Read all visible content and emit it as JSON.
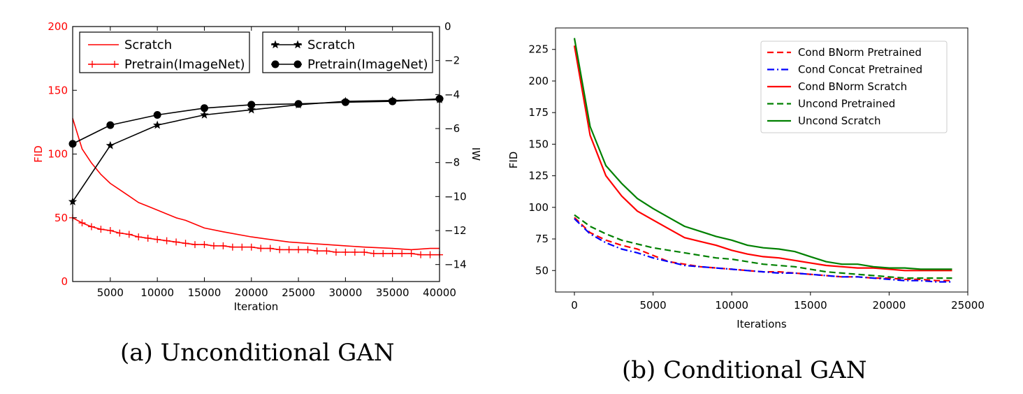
{
  "chart_data": [
    {
      "type": "line",
      "caption": "(a) Unconditional GAN",
      "xlabel": "Iteration",
      "ylabel": "FID",
      "ylabel_right": "IW",
      "xlim": [
        1000,
        40000
      ],
      "ylim": [
        0,
        200
      ],
      "ylim_right": [
        -15,
        0
      ],
      "xticks": [
        5000,
        10000,
        15000,
        20000,
        25000,
        30000,
        35000,
        40000
      ],
      "yticks": [
        0,
        50,
        100,
        150,
        200
      ],
      "yticks_right": [
        0,
        -2,
        -4,
        -6,
        -8,
        -10,
        -12,
        -14
      ],
      "left_axis_color": "#ff0000",
      "grid": false,
      "legend_placement": "top (two boxes)",
      "series": [
        {
          "name": "Scratch",
          "axis": "left",
          "color": "#ff0000",
          "marker": "none",
          "x": [
            1000,
            2000,
            3000,
            4000,
            5000,
            6000,
            7000,
            8000,
            9000,
            10000,
            11000,
            12000,
            13000,
            14000,
            15000,
            17000,
            20000,
            22000,
            24000,
            26000,
            28000,
            30000,
            32000,
            35000,
            37000,
            39000,
            40000
          ],
          "values": [
            128,
            104,
            93,
            84,
            77,
            72,
            67,
            62,
            59,
            56,
            53,
            50,
            48,
            45,
            42,
            39,
            35,
            33,
            31,
            30,
            29,
            28,
            27,
            26,
            25,
            26,
            26
          ]
        },
        {
          "name": "Pretrain(ImageNet)",
          "axis": "left",
          "color": "#ff0000",
          "marker": "plus",
          "x": [
            1000,
            2000,
            3000,
            4000,
            5000,
            6000,
            7000,
            8000,
            9000,
            10000,
            11000,
            12000,
            13000,
            14000,
            15000,
            16000,
            17000,
            18000,
            19000,
            20000,
            21000,
            22000,
            23000,
            24000,
            25000,
            26000,
            27000,
            28000,
            29000,
            30000,
            31000,
            32000,
            33000,
            34000,
            35000,
            36000,
            37000,
            38000,
            39000,
            40000
          ],
          "values": [
            50,
            46,
            43,
            41,
            40,
            38,
            37,
            35,
            34,
            33,
            32,
            31,
            30,
            29,
            29,
            28,
            28,
            27,
            27,
            27,
            26,
            26,
            25,
            25,
            25,
            25,
            24,
            24,
            23,
            23,
            23,
            23,
            22,
            22,
            22,
            22,
            22,
            21,
            21,
            21
          ]
        },
        {
          "name": "Scratch",
          "axis": "right",
          "color": "#000000",
          "marker": "star",
          "x": [
            1000,
            5000,
            10000,
            15000,
            20000,
            25000,
            30000,
            35000,
            40000
          ],
          "values": [
            -10.3,
            -7.0,
            -5.8,
            -5.2,
            -4.9,
            -4.6,
            -4.4,
            -4.35,
            -4.3
          ]
        },
        {
          "name": "Pretrain(ImageNet)",
          "axis": "right",
          "color": "#000000",
          "marker": "circle",
          "x": [
            1000,
            5000,
            10000,
            15000,
            20000,
            25000,
            30000,
            35000,
            40000
          ],
          "values": [
            -6.9,
            -5.8,
            -5.2,
            -4.8,
            -4.6,
            -4.55,
            -4.45,
            -4.4,
            -4.25
          ]
        }
      ]
    },
    {
      "type": "line",
      "caption": "(b) Conditional GAN",
      "xlabel": "Iterations",
      "ylabel": "FID",
      "xlim": [
        -1200,
        25000
      ],
      "ylim": [
        33,
        242
      ],
      "xticks": [
        0,
        5000,
        10000,
        15000,
        20000,
        25000
      ],
      "yticks": [
        50,
        75,
        100,
        125,
        150,
        175,
        200,
        225
      ],
      "grid": false,
      "legend_placement": "top-right",
      "series": [
        {
          "name": "Cond BNorm Pretrained",
          "color": "#ff0000",
          "dash": "dashed",
          "x": [
            0,
            1000,
            2000,
            3000,
            4000,
            5000,
            6000,
            7000,
            8000,
            9000,
            10000,
            11000,
            12000,
            13000,
            14000,
            15000,
            16000,
            17000,
            18000,
            19000,
            20000,
            21000,
            22000,
            23000,
            24000
          ],
          "values": [
            92,
            80,
            74,
            70,
            67,
            62,
            57,
            55,
            53,
            52,
            51,
            50,
            49,
            49,
            48,
            47,
            46,
            45,
            45,
            44,
            44,
            43,
            43,
            42,
            42
          ]
        },
        {
          "name": "Cond Concat Pretrained",
          "color": "#0000ff",
          "dash": "dashdot",
          "x": [
            0,
            1000,
            2000,
            3000,
            4000,
            5000,
            6000,
            7000,
            8000,
            9000,
            10000,
            11000,
            12000,
            13000,
            14000,
            15000,
            16000,
            17000,
            18000,
            19000,
            20000,
            21000,
            22000,
            23000,
            24000
          ],
          "values": [
            91,
            79,
            72,
            67,
            64,
            60,
            57,
            54,
            53,
            52,
            51,
            50,
            49,
            48,
            48,
            47,
            46,
            45,
            45,
            44,
            43,
            42,
            42,
            41,
            41
          ]
        },
        {
          "name": "Cond BNorm Scratch",
          "color": "#ff0000",
          "dash": "solid",
          "x": [
            0,
            1000,
            2000,
            3000,
            4000,
            5000,
            6000,
            7000,
            8000,
            9000,
            10000,
            11000,
            12000,
            13000,
            14000,
            15000,
            16000,
            17000,
            18000,
            19000,
            20000,
            21000,
            22000,
            23000,
            24000
          ],
          "values": [
            228,
            157,
            125,
            109,
            97,
            90,
            83,
            76,
            73,
            70,
            66,
            63,
            61,
            60,
            58,
            56,
            54,
            53,
            52,
            52,
            51,
            50,
            50,
            50,
            50
          ]
        },
        {
          "name": "Uncond Pretrained",
          "color": "#008000",
          "dash": "dashed",
          "x": [
            0,
            1000,
            2000,
            3000,
            4000,
            5000,
            6000,
            7000,
            8000,
            9000,
            10000,
            11000,
            12000,
            13000,
            14000,
            15000,
            16000,
            17000,
            18000,
            19000,
            20000,
            21000,
            22000,
            23000,
            24000
          ],
          "values": [
            94,
            85,
            79,
            74,
            71,
            68,
            66,
            64,
            62,
            60,
            59,
            57,
            55,
            54,
            53,
            51,
            49,
            48,
            47,
            46,
            45,
            44,
            44,
            44,
            44
          ]
        },
        {
          "name": "Uncond Scratch",
          "color": "#008000",
          "dash": "solid",
          "x": [
            0,
            1000,
            2000,
            3000,
            4000,
            5000,
            6000,
            7000,
            8000,
            9000,
            10000,
            11000,
            12000,
            13000,
            14000,
            15000,
            16000,
            17000,
            18000,
            19000,
            20000,
            21000,
            22000,
            23000,
            24000
          ],
          "values": [
            234,
            164,
            133,
            119,
            107,
            99,
            92,
            85,
            81,
            77,
            74,
            70,
            68,
            67,
            65,
            61,
            57,
            55,
            55,
            53,
            52,
            52,
            51,
            51,
            51
          ]
        }
      ]
    }
  ]
}
